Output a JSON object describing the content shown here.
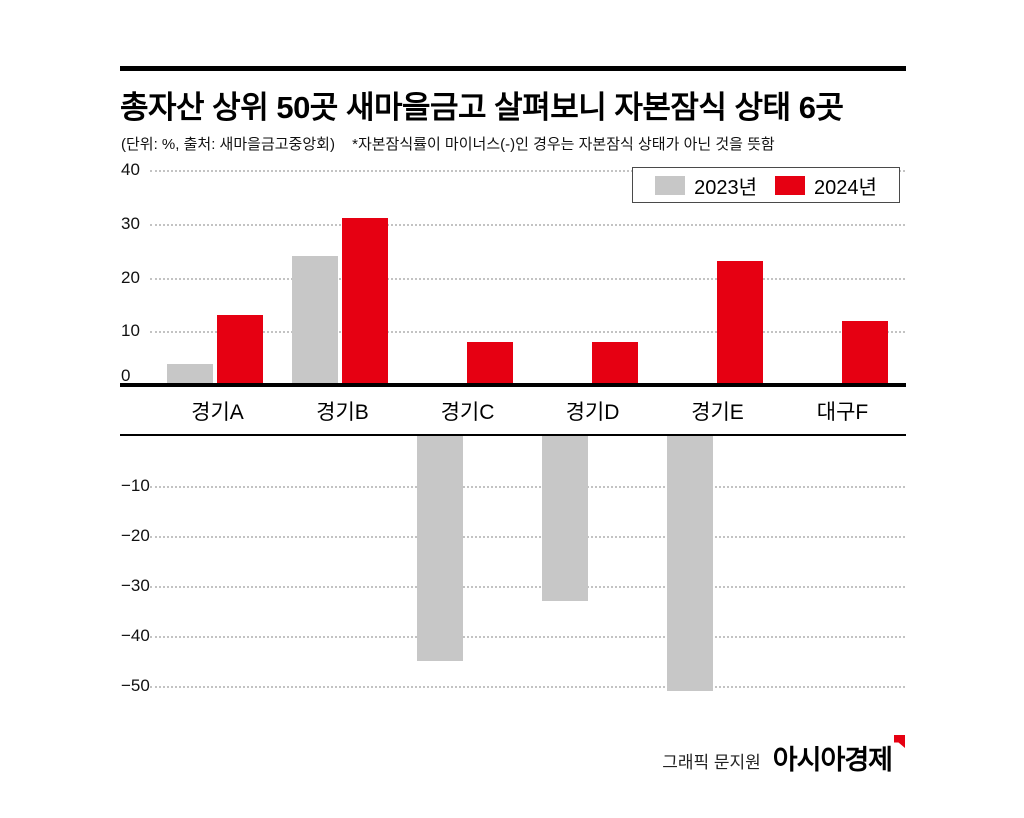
{
  "header": {
    "title": "총자산 상위 50곳 새마을금고 살펴보니 자본잠식 상태 6곳",
    "unit_source": "(단위: %, 출처: 새마을금고중앙회)",
    "note": "*자본잠식률이 마이너스(-)인 경우는 자본잠식 상태가 아닌 것을 뜻함"
  },
  "legend": {
    "items": [
      {
        "label": "2023년",
        "color": "#c7c7c7"
      },
      {
        "label": "2024년",
        "color": "#e60012"
      }
    ]
  },
  "footer": {
    "credit": "그래픽 문지원",
    "brand": "아시아경제"
  },
  "colors": {
    "bar_2023": "#c7c7c7",
    "bar_2024": "#e60012",
    "axis": "#000000",
    "grid": "#c3c3c3",
    "brand_mark": "#e60012"
  },
  "chart_data": {
    "type": "bar",
    "title": "총자산 상위 50곳 새마을금고 살펴보니 자본잠식 상태 6곳",
    "unit": "%",
    "source": "새마을금고중앙회",
    "categories": [
      "경기A",
      "경기B",
      "경기C",
      "경기D",
      "경기E",
      "대구F"
    ],
    "series": [
      {
        "name": "2023년",
        "color": "#c7c7c7",
        "values": [
          4,
          24,
          -45,
          -33,
          -51,
          null
        ]
      },
      {
        "name": "2024년",
        "color": "#e60012",
        "values": [
          13,
          31,
          8,
          8,
          23,
          12
        ]
      }
    ],
    "ylim": [
      -55,
      40
    ],
    "yticks_positive": [
      40,
      30,
      20,
      10,
      0
    ],
    "yticks_negative": [
      -10,
      -20,
      -30,
      -40,
      -50
    ],
    "grid": "dotted-horizontal",
    "legend_position": "top-right",
    "axis_break_between_panels": true,
    "note": "자본잠식률이 마이너스(-)인 경우는 자본잠식 상태가 아닌 것을 뜻함"
  }
}
